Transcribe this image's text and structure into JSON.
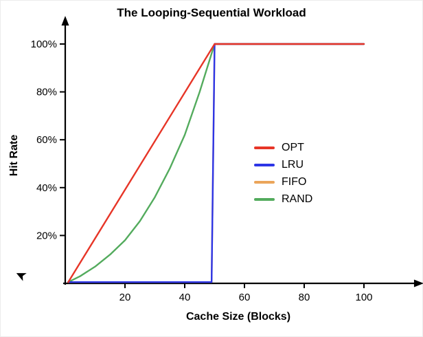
{
  "chart_data": {
    "type": "line",
    "title": "The Looping-Sequential Workload",
    "xlabel": "Cache Size (Blocks)",
    "ylabel": "Hit Rate",
    "xlim": [
      0,
      117
    ],
    "ylim": [
      0,
      108
    ],
    "x_ticks": [
      20,
      40,
      60,
      80,
      100
    ],
    "y_ticks": [
      20,
      40,
      60,
      80,
      100
    ],
    "y_tick_suffix": "%",
    "grid": false,
    "legend_position": "center-right",
    "series": [
      {
        "name": "OPT",
        "color": "#e73527",
        "points": [
          [
            1,
            0
          ],
          [
            50,
            100
          ],
          [
            100,
            100
          ]
        ]
      },
      {
        "name": "LRU",
        "color": "#2d35e6",
        "points": [
          [
            1,
            0
          ],
          [
            49,
            0
          ],
          [
            50,
            100
          ],
          [
            100,
            100
          ]
        ]
      },
      {
        "name": "FIFO",
        "color": "#eba55a",
        "points": [
          [
            1,
            0
          ],
          [
            49,
            0
          ],
          [
            50,
            100
          ],
          [
            100,
            100
          ]
        ]
      },
      {
        "name": "RAND",
        "color": "#53ab5d",
        "points": [
          [
            1,
            0
          ],
          [
            5,
            3
          ],
          [
            10,
            7
          ],
          [
            15,
            12
          ],
          [
            20,
            18
          ],
          [
            25,
            26
          ],
          [
            30,
            36
          ],
          [
            35,
            48
          ],
          [
            40,
            62
          ],
          [
            45,
            80
          ],
          [
            50,
            100
          ],
          [
            100,
            100
          ]
        ]
      }
    ],
    "draw_order": [
      "FIFO",
      "RAND",
      "LRU",
      "OPT"
    ]
  },
  "icons": {
    "cursor": "➤"
  }
}
